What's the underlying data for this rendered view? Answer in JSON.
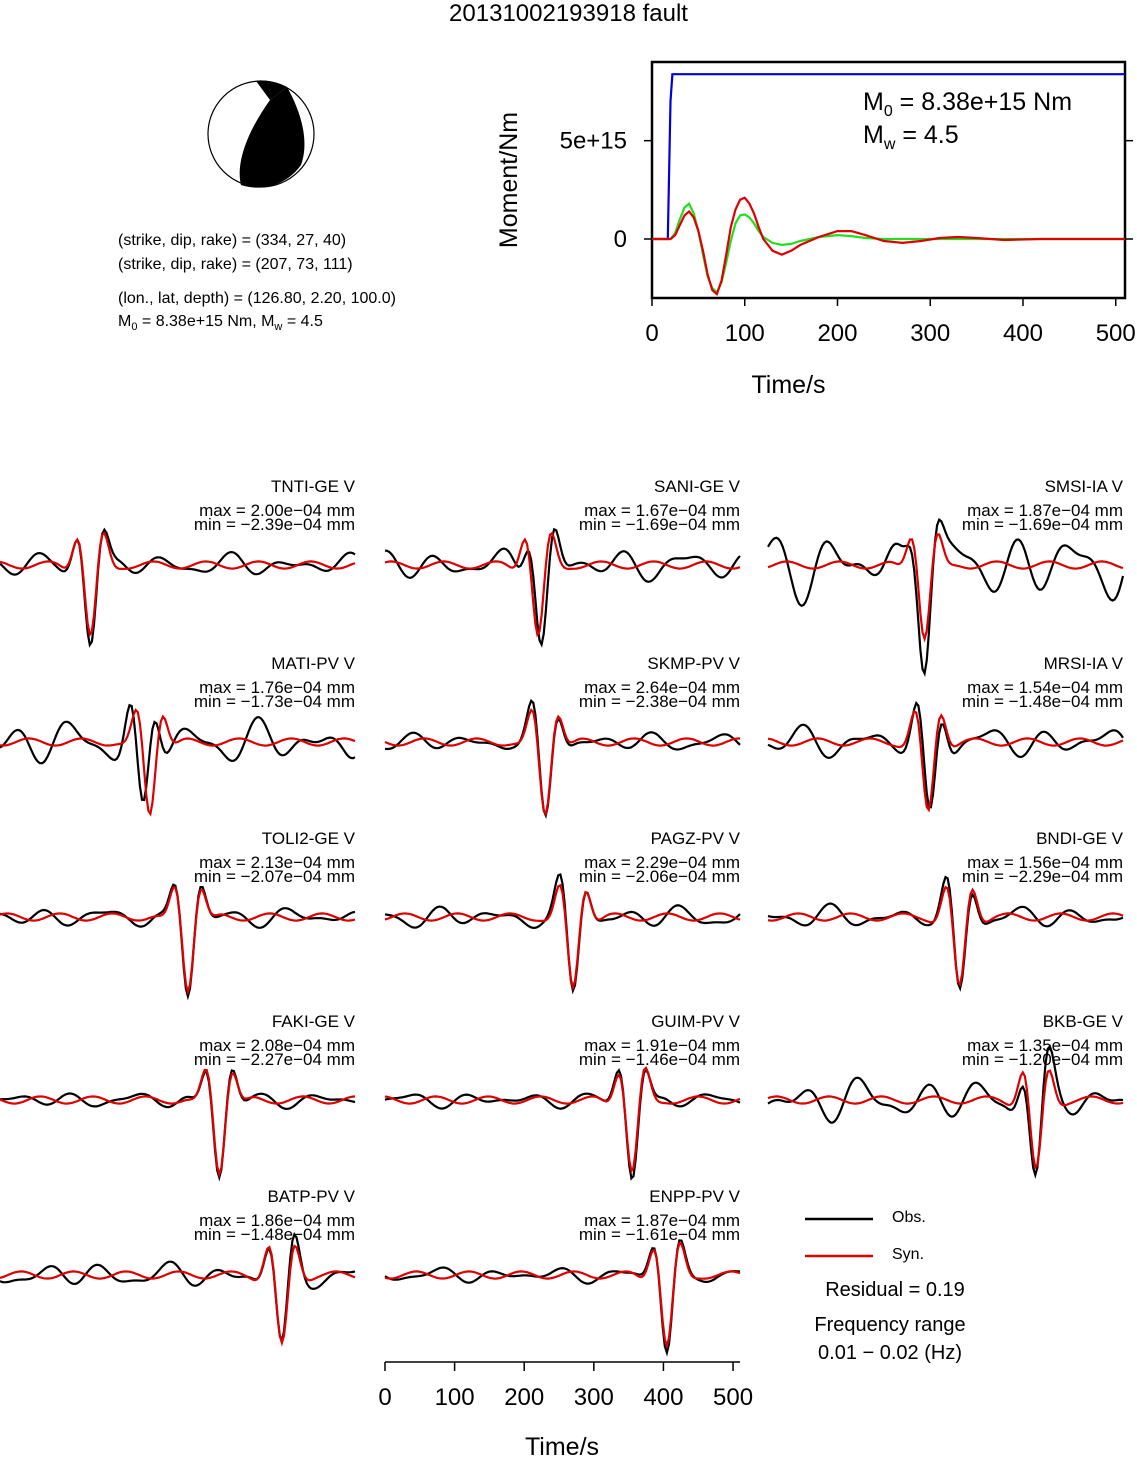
{
  "title": "20131002193918 fault",
  "source_params": {
    "line1": "(strike, dip, rake) = (334, 27, 40)",
    "line2": "(strike, dip, rake) = (207, 73, 111)",
    "line3": "(lon., lat, depth) = (126.80, 2.20, 100.0)",
    "line4_prefix": "M",
    "line4_sub": "0",
    "line4_rest": " = 8.38e+15 Nm, M",
    "line4_sub2": "w",
    "line4_tail": " = 4.5"
  },
  "colors": {
    "obs": "#000000",
    "syn": "#dd0000",
    "stf_moment": "#0000dd",
    "stf_green": "#22dd22"
  },
  "chart_data": [
    {
      "type": "line",
      "name": "moment_function",
      "xlabel": "Time/s",
      "ylabel": "Moment/Nm",
      "xlim": [
        0,
        510
      ],
      "ylim": [
        -3000000000000000.0,
        9000000000000000.0
      ],
      "xticks": [
        0,
        100,
        200,
        300,
        400,
        500
      ],
      "yticks": [
        {
          "value": 0,
          "label": "0"
        },
        {
          "value": 5000000000000000.0,
          "label": "5e+15"
        }
      ],
      "annotation_m0": "= 8.38e+15 Nm",
      "annotation_mw": "= 4.5",
      "series": [
        {
          "color": "#0000dd",
          "x": [
            0,
            17,
            20,
            22,
            510
          ],
          "y": [
            0,
            0,
            7000000000000000.0,
            8380000000000000.0,
            8380000000000000.0
          ]
        },
        {
          "color": "#22dd22",
          "x": [
            0,
            15,
            20,
            25,
            30,
            35,
            40,
            45,
            50,
            55,
            60,
            65,
            70,
            75,
            80,
            85,
            90,
            95,
            100,
            105,
            110,
            115,
            120,
            130,
            140,
            150,
            160,
            180,
            200,
            215,
            230,
            250,
            280,
            320,
            400,
            510
          ],
          "y": [
            0,
            0,
            0,
            300000000000000.0,
            1000000000000000.0,
            1600000000000000.0,
            1800000000000000.0,
            1300000000000000.0,
            400000000000000.0,
            -800000000000000.0,
            -1900000000000000.0,
            -2500000000000000.0,
            -2700000000000000.0,
            -2200000000000000.0,
            -1200000000000000.0,
            -100000000000000.0,
            800000000000000.0,
            1200000000000000.0,
            1250000000000000.0,
            1100000000000000.0,
            800000000000000.0,
            400000000000000.0,
            100000000000000.0,
            -200000000000000.0,
            -300000000000000.0,
            -250000000000000.0,
            -100000000000000.0,
            100000000000000.0,
            200000000000000.0,
            150000000000000.0,
            50000000000000.0,
            0,
            0,
            0,
            0,
            0
          ]
        },
        {
          "color": "#dd0000",
          "x": [
            0,
            15,
            20,
            25,
            30,
            35,
            40,
            45,
            50,
            55,
            60,
            65,
            70,
            75,
            80,
            85,
            90,
            95,
            100,
            105,
            110,
            115,
            120,
            130,
            140,
            150,
            160,
            180,
            200,
            215,
            230,
            250,
            270,
            290,
            310,
            330,
            350,
            380,
            420,
            460,
            510
          ],
          "y": [
            0,
            0,
            0,
            200000000000000.0,
            700000000000000.0,
            1200000000000000.0,
            1400000000000000.0,
            1100000000000000.0,
            400000000000000.0,
            -600000000000000.0,
            -1800000000000000.0,
            -2600000000000000.0,
            -2800000000000000.0,
            -2100000000000000.0,
            -800000000000000.0,
            600000000000000.0,
            1500000000000000.0,
            2000000000000000.0,
            2100000000000000.0,
            1800000000000000.0,
            1300000000000000.0,
            600000000000000.0,
            0,
            -600000000000000.0,
            -800000000000000.0,
            -600000000000000.0,
            -300000000000000.0,
            100000000000000.0,
            400000000000000.0,
            400000000000000.0,
            200000000000000.0,
            -100000000000000.0,
            -200000000000000.0,
            -100000000000000.0,
            50000000000000.0,
            100000000000000.0,
            50000000000000.0,
            -50000000000000.0,
            0,
            0,
            0
          ]
        }
      ]
    },
    {
      "type": "line",
      "name": "waveforms",
      "xlabel": "Time/s",
      "xlim": [
        0,
        510
      ],
      "xticks": [
        0,
        100,
        200,
        300,
        400,
        500
      ],
      "stations": [
        {
          "name": "TNTI-GE V",
          "max": "max = 2.00e−04 mm",
          "min": "min = −2.39e−04 mm",
          "syn_t": 130,
          "obs_t": 130,
          "obs_noise": 0.18,
          "seed": 1
        },
        {
          "name": "SANI-GE V",
          "max": "max = 1.67e−04 mm",
          "min": "min = −1.69e−04 mm",
          "syn_t": 220,
          "obs_t": 225,
          "obs_noise": 0.25,
          "seed": 2
        },
        {
          "name": "SMSI-IA V",
          "max": "max = 1.87e−04 mm",
          "min": "min = −1.69e−04 mm",
          "syn_t": 225,
          "obs_t": 225,
          "obs_noise": 0.55,
          "seed": 3
        },
        {
          "name": "MATI-PV V",
          "max": "max = 1.76e−04 mm",
          "min": "min = −1.73e−04 mm",
          "syn_t": 215,
          "obs_t": 205,
          "obs_noise": 0.35,
          "seed": 4
        },
        {
          "name": "SKMP-PV V",
          "max": "max = 2.64e−04 mm",
          "min": "min = −2.38e−04 mm",
          "syn_t": 230,
          "obs_t": 230,
          "obs_noise": 0.15,
          "seed": 5
        },
        {
          "name": "MRSI-IA V",
          "max": "max = 1.54e−04 mm",
          "min": "min = −1.48e−04 mm",
          "syn_t": 230,
          "obs_t": 232,
          "obs_noise": 0.25,
          "seed": 6
        },
        {
          "name": "TOLI2-GE V",
          "max": "max = 2.13e−04 mm",
          "min": "min = −2.07e−04 mm",
          "syn_t": 270,
          "obs_t": 270,
          "obs_noise": 0.15,
          "seed": 7
        },
        {
          "name": "PAGZ-PV V",
          "max": "max = 2.29e−04 mm",
          "min": "min = −2.06e−04 mm",
          "syn_t": 270,
          "obs_t": 270,
          "obs_noise": 0.18,
          "seed": 8
        },
        {
          "name": "BNDI-GE V",
          "max": "max = 1.56e−04 mm",
          "min": "min = −2.29e−04 mm",
          "syn_t": 275,
          "obs_t": 275,
          "obs_noise": 0.18,
          "seed": 9
        },
        {
          "name": "FAKI-GE V",
          "max": "max = 2.08e−04 mm",
          "min": "min = −2.27e−04 mm",
          "syn_t": 315,
          "obs_t": 315,
          "obs_noise": 0.12,
          "seed": 10
        },
        {
          "name": "GUIM-PV V",
          "max": "max = 1.91e−04 mm",
          "min": "min = −1.46e−04 mm",
          "syn_t": 355,
          "obs_t": 355,
          "obs_noise": 0.12,
          "seed": 11
        },
        {
          "name": "BKB-GE V",
          "max": "max = 1.35e−04 mm",
          "min": "min = −1.20e−04 mm",
          "syn_t": 385,
          "obs_t": 385,
          "obs_noise": 0.35,
          "seed": 12
        },
        {
          "name": "BATP-PV V",
          "max": "max = 1.86e−04 mm",
          "min": "min = −1.48e−04 mm",
          "syn_t": 405,
          "obs_t": 405,
          "obs_noise": 0.2,
          "seed": 13
        },
        {
          "name": "ENPP-PV V",
          "max": "max = 1.87e−04 mm",
          "min": "min = −1.61e−04 mm",
          "syn_t": 405,
          "obs_t": 405,
          "obs_noise": 0.12,
          "seed": 14
        }
      ]
    }
  ],
  "legend": {
    "obs_label": "Obs.",
    "syn_label": "Syn."
  },
  "residual": "Residual = 0.19",
  "freq_label": "Frequency range",
  "freq_value": "0.01 − 0.02 (Hz)"
}
